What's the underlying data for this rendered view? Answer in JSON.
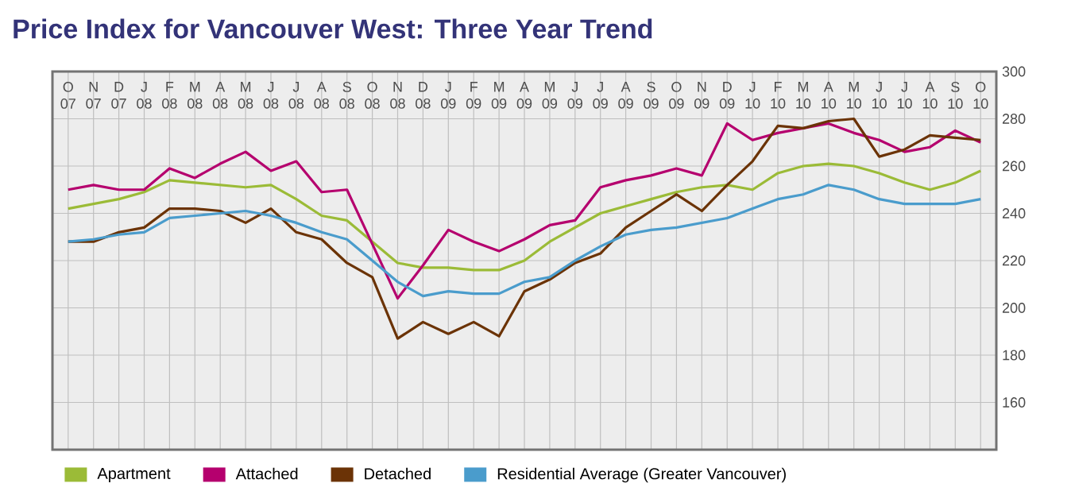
{
  "chart_data": {
    "type": "line",
    "title": "Price Index for Vancouver West: Three Year Trend",
    "categories": [
      "O 07",
      "N 07",
      "D 07",
      "J 08",
      "F 08",
      "M 08",
      "A 08",
      "M 08",
      "J 08",
      "J 08",
      "A 08",
      "S 08",
      "O 08",
      "N 08",
      "D 08",
      "J 09",
      "F 09",
      "M 09",
      "A 09",
      "M 09",
      "J 09",
      "J 09",
      "A 09",
      "S 09",
      "O 09",
      "N 09",
      "D 09",
      "J 10",
      "F 10",
      "M 10",
      "A 10",
      "M 10",
      "J 10",
      "J 10",
      "A 10",
      "S 10",
      "O 10"
    ],
    "series": [
      {
        "name": "Apartment",
        "color": "#9bbb37",
        "values": [
          242,
          244,
          246,
          249,
          254,
          253,
          252,
          251,
          252,
          246,
          239,
          237,
          228,
          219,
          217,
          217,
          216,
          216,
          220,
          228,
          234,
          240,
          243,
          246,
          249,
          251,
          252,
          250,
          257,
          260,
          261,
          260,
          257,
          253,
          250,
          253,
          258
        ]
      },
      {
        "name": "Attached",
        "color": "#b5006e",
        "values": [
          250,
          252,
          250,
          250,
          259,
          255,
          261,
          266,
          258,
          262,
          249,
          250,
          227,
          204,
          218,
          233,
          228,
          224,
          229,
          235,
          237,
          251,
          254,
          256,
          259,
          256,
          278,
          271,
          274,
          276,
          278,
          274,
          271,
          266,
          268,
          275,
          270
        ]
      },
      {
        "name": "Detached",
        "color": "#6b3306",
        "values": [
          228,
          228,
          232,
          234,
          242,
          242,
          241,
          236,
          242,
          232,
          229,
          219,
          213,
          187,
          194,
          189,
          194,
          188,
          207,
          212,
          219,
          223,
          234,
          241,
          248,
          241,
          252,
          262,
          277,
          276,
          279,
          280,
          264,
          267,
          273,
          272,
          271
        ]
      },
      {
        "name": "Residential Average (Greater Vancouver)",
        "color": "#4a9ccc",
        "values": [
          228,
          229,
          231,
          232,
          238,
          239,
          240,
          241,
          239,
          236,
          232,
          229,
          220,
          211,
          205,
          207,
          206,
          206,
          211,
          213,
          220,
          226,
          231,
          233,
          234,
          236,
          238,
          242,
          246,
          248,
          252,
          250,
          246,
          244,
          244,
          244,
          246
        ]
      }
    ],
    "ylim": [
      140,
      300
    ],
    "yticks": [
      160,
      180,
      200,
      220,
      240,
      260,
      280,
      300
    ],
    "grid": true,
    "legend": "bottom",
    "marker": "none",
    "line_style": "solid"
  }
}
